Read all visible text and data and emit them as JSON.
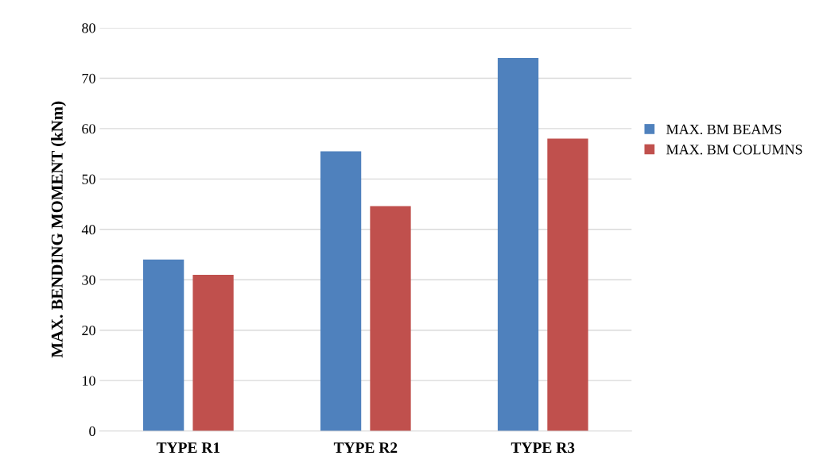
{
  "chart_data": {
    "type": "bar",
    "ylabel": "MAX. BENDING MOMENT (kNm)",
    "categories": [
      "TYPE R1",
      "TYPE R2",
      "TYPE R3"
    ],
    "series": [
      {
        "name": "MAX. BM BEAMS",
        "color": "#4f81bd",
        "values": [
          34,
          55.5,
          74
        ]
      },
      {
        "name": "MAX. BM COLUMNS",
        "color": "#c0504d",
        "values": [
          31,
          44.6,
          58
        ]
      }
    ],
    "ylim": [
      0,
      80
    ],
    "yticks": [
      0,
      10,
      20,
      30,
      40,
      50,
      60,
      70,
      80
    ],
    "grid": "y",
    "legend": "right"
  }
}
